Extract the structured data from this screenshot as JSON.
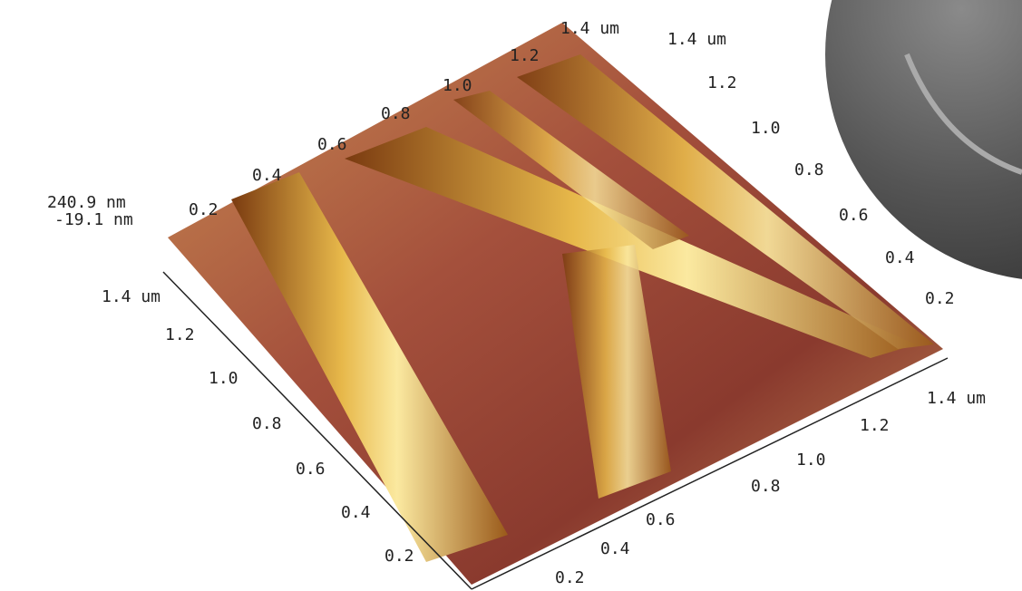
{
  "z_axis": {
    "max": "240.9 nm",
    "min": "-19.1 nm"
  },
  "left_axis": {
    "labels": [
      "1.4 um",
      "1.2",
      "1.0",
      "0.8",
      "0.6",
      "0.4",
      "0.2"
    ]
  },
  "bottom_axis": {
    "labels": [
      "0.2",
      "0.4",
      "0.6",
      "0.8",
      "1.0",
      "1.2",
      "1.4 um"
    ]
  },
  "right_axis": {
    "labels": [
      "0.2",
      "0.4",
      "0.6",
      "0.8",
      "1.0",
      "1.2",
      "1.4 um"
    ]
  },
  "top_axis": {
    "labels": [
      "0.2",
      "0.4",
      "0.6",
      "0.8",
      "1.0",
      "1.2",
      "1.4 um"
    ]
  }
}
